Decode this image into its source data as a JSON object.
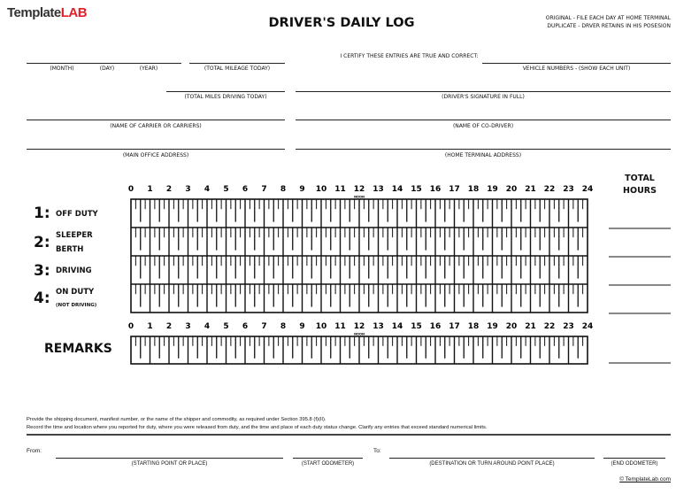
{
  "brand": {
    "logo_part1": "Template",
    "logo_part2": "LAB",
    "logo_color": "#e31e2a",
    "copyright": "© TemplateLab.com"
  },
  "header": {
    "title": "DRIVER'S DAILY LOG",
    "note_original": "ORIGINAL - FILE EACH DAY AT HOME TERMINAL",
    "note_duplicate": "DUPLICATE - DRVER RETAINS IN HIS POSESION"
  },
  "fields": {
    "month": "(MONTH)",
    "day": "(DAY)",
    "year": "(YEAR)",
    "total_mileage": "(TOTAL MILEAGE TODAY)",
    "certify": "I CERTIFY THESE ENTRIES ARE TRUE AND CORRECT:",
    "vehicle_numbers": "VEHICLE NUMBERS - (SHOW EACH UNIT)",
    "total_miles_driving": "(TOTAL MILES DRIVING TODAY)",
    "driver_signature": "(DRIVER'S SIGNATURE IN FULL)",
    "carrier": "(NAME OF CARRIER OR CARRIERS)",
    "co_driver": "(NAME OF CO-DRIVER)",
    "main_office": "(MAIN OFFICE ADDRESS)",
    "home_terminal": "(HOME TERMINAL ADDRESS)"
  },
  "grid": {
    "hours": [
      "0",
      "1",
      "2",
      "3",
      "4",
      "5",
      "6",
      "7",
      "8",
      "9",
      "10",
      "11",
      "12",
      "13",
      "14",
      "15",
      "16",
      "17",
      "18",
      "19",
      "20",
      "21",
      "22",
      "23",
      "24"
    ],
    "noon_label": "NOON",
    "total_hours_line1": "TOTAL",
    "total_hours_line2": "HOURS",
    "rows": [
      {
        "num": "1:",
        "label": "OFF DUTY",
        "sub": ""
      },
      {
        "num": "2:",
        "label": "SLEEPER",
        "label2": "BERTH",
        "sub": ""
      },
      {
        "num": "3:",
        "label": "DRIVING",
        "sub": ""
      },
      {
        "num": "4:",
        "label": "ON DUTY",
        "sub": "(NOT DRIVING)"
      }
    ],
    "remarks": "REMARKS"
  },
  "footer": {
    "instruction1": "Provide the shipping document, manifest number, or the name of the shipper and commodity, as required under Section 395.8 (f)(II).",
    "instruction2": "Record the time and location where you reported for duty, where you were released from duty, and the time and place of each duty status change. Clarify any entries that exceed standard numerical limits.",
    "from": "From:",
    "to": "To:",
    "starting_point": "(STARTING POINT OR PLACE)",
    "start_odometer": "(START ODOMETER)",
    "destination": "(DESTINATION OR TURN AROUND POINT PLACE)",
    "end_odometer": "(END ODOMETER)"
  }
}
